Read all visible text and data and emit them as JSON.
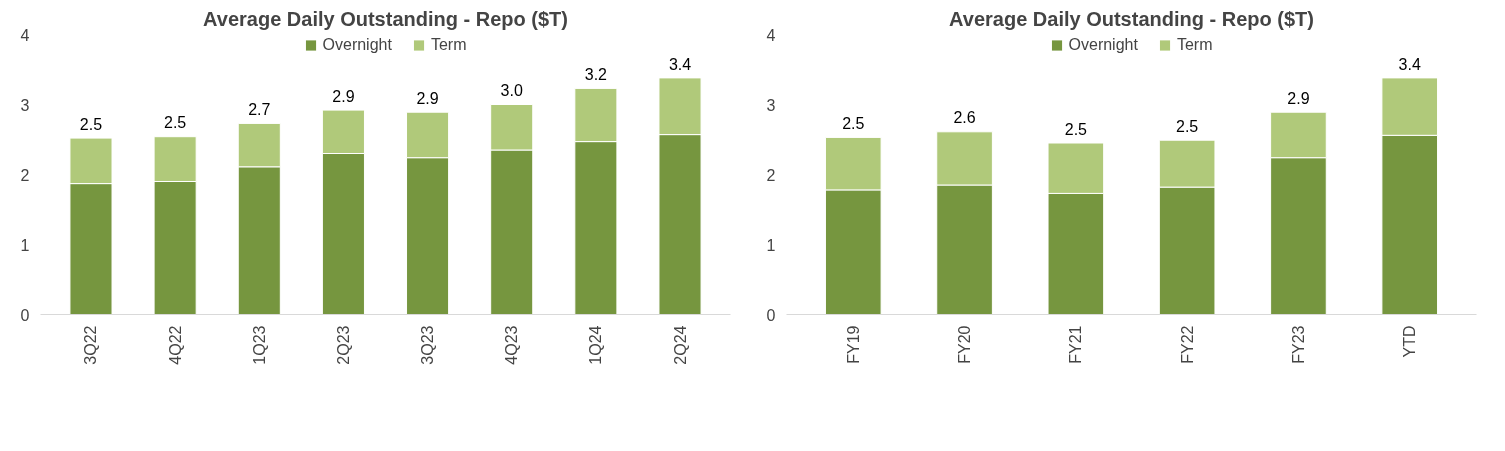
{
  "chart_data": [
    {
      "type": "bar",
      "title": "Average Daily Outstanding - Repo ($T)",
      "categories": [
        "3Q22",
        "4Q22",
        "1Q23",
        "2Q23",
        "3Q23",
        "4Q23",
        "1Q24",
        "2Q24"
      ],
      "stacked": true,
      "series": [
        {
          "name": "Overnight",
          "color": "#76963f",
          "values": [
            1.87,
            1.9,
            2.11,
            2.3,
            2.24,
            2.35,
            2.47,
            2.57
          ]
        },
        {
          "name": "Term",
          "color": "#b0c97a",
          "values": [
            0.65,
            0.64,
            0.62,
            0.62,
            0.65,
            0.65,
            0.76,
            0.81
          ]
        }
      ],
      "totals": [
        "2.5",
        "2.5",
        "2.7",
        "2.9",
        "2.9",
        "3.0",
        "3.2",
        "3.4"
      ],
      "ylim": [
        0,
        4
      ],
      "yticks": [
        0,
        1,
        2,
        3,
        4
      ],
      "grid": false,
      "legend": "top"
    },
    {
      "type": "bar",
      "title": "Average Daily Outstanding - Repo ($T)",
      "categories": [
        "FY19",
        "FY20",
        "FY21",
        "FY22",
        "FY23",
        "YTD"
      ],
      "stacked": true,
      "series": [
        {
          "name": "Overnight",
          "color": "#76963f",
          "values": [
            1.78,
            1.85,
            1.73,
            1.82,
            2.24,
            2.56
          ]
        },
        {
          "name": "Term",
          "color": "#b0c97a",
          "values": [
            0.75,
            0.76,
            0.72,
            0.67,
            0.65,
            0.82
          ]
        }
      ],
      "totals": [
        "2.5",
        "2.6",
        "2.5",
        "2.5",
        "2.9",
        "3.4"
      ],
      "ylim": [
        0,
        4
      ],
      "yticks": [
        0,
        1,
        2,
        3,
        4
      ],
      "grid": false,
      "legend": "top"
    }
  ]
}
